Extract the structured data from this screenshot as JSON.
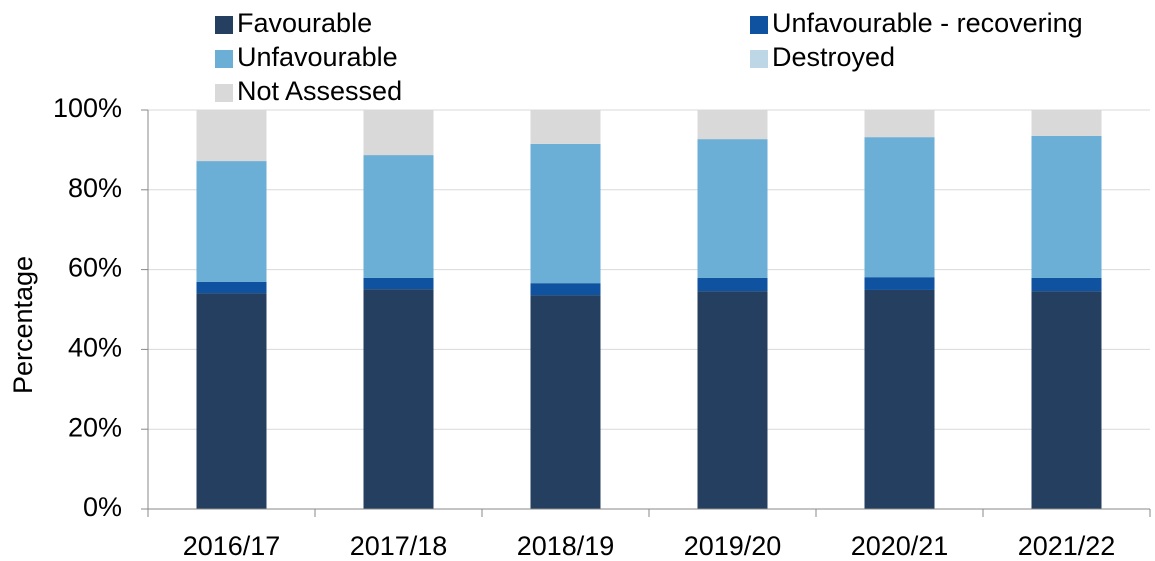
{
  "chart_data": {
    "type": "stacked_bar",
    "y_label": "Percentage",
    "categories": [
      "2016/17",
      "2017/18",
      "2018/19",
      "2019/20",
      "2020/21",
      "2021/22"
    ],
    "series": [
      {
        "name": "Favourable",
        "color": "#253f60",
        "values": [
          54.1,
          55.1,
          53.6,
          54.6,
          54.9,
          54.6
        ]
      },
      {
        "name": "Unfavourable - recovering",
        "color": "#0e52a0",
        "values": [
          2.8,
          2.8,
          3.0,
          3.3,
          3.2,
          3.3
        ]
      },
      {
        "name": "Unfavourable",
        "color": "#6baed6",
        "values": [
          30.3,
          30.8,
          34.9,
          34.8,
          35.1,
          35.6
        ]
      },
      {
        "name": "Destroyed",
        "color": "#bdd7e7",
        "values": [
          0,
          0,
          0,
          0,
          0,
          0
        ]
      },
      {
        "name": "Not Assessed",
        "color": "#d9d9d9",
        "values": [
          12.8,
          11.3,
          8.5,
          7.3,
          6.8,
          6.5
        ]
      }
    ],
    "ylim": [
      0,
      100
    ],
    "yticks": [
      {
        "value": 0,
        "label": "0%"
      },
      {
        "value": 20,
        "label": "20%"
      },
      {
        "value": 40,
        "label": "40%"
      },
      {
        "value": 60,
        "label": "60%"
      },
      {
        "value": 80,
        "label": "80%"
      },
      {
        "value": 100,
        "label": "100%"
      }
    ],
    "grid": true,
    "legend": "top"
  }
}
